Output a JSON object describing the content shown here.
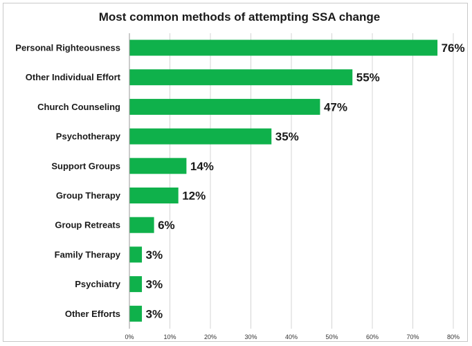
{
  "chart_data": {
    "type": "bar",
    "orientation": "horizontal",
    "title": "Most common methods of attempting SSA change",
    "categories": [
      "Personal Righteousness",
      "Other Individual Effort",
      "Church Counseling",
      "Psychotherapy",
      "Support Groups",
      "Group Therapy",
      "Group Retreats",
      "Family Therapy",
      "Psychiatry",
      "Other Efforts"
    ],
    "values": [
      76,
      55,
      47,
      35,
      14,
      12,
      6,
      3,
      3,
      3
    ],
    "value_labels": [
      "76%",
      "55%",
      "47%",
      "35%",
      "14%",
      "12%",
      "6%",
      "3%",
      "3%",
      "3%"
    ],
    "xlim": [
      0,
      80
    ],
    "x_ticks": [
      0,
      10,
      20,
      30,
      40,
      50,
      60,
      70,
      80
    ],
    "x_tick_labels": [
      "0%",
      "10%",
      "20%",
      "30%",
      "40%",
      "50%",
      "60%",
      "70%",
      "80%"
    ],
    "xlabel": "",
    "ylabel": "",
    "grid": "vertical",
    "legend": "none",
    "bar_color": "#0fb14b"
  }
}
